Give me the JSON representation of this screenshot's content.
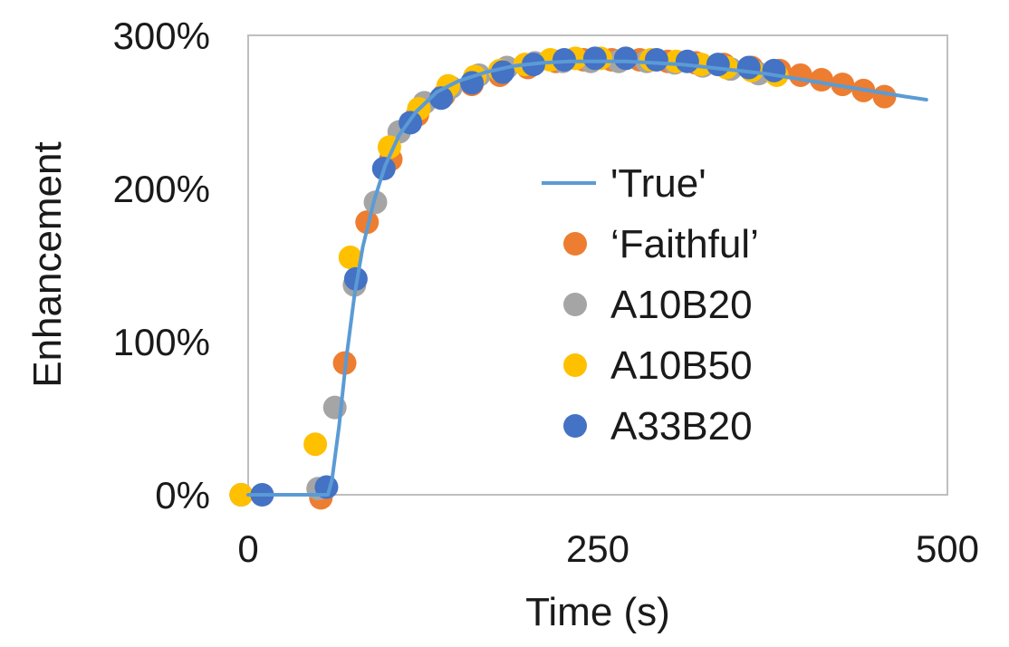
{
  "chart_data": {
    "type": "scatter",
    "xlabel": "Time (s)",
    "ylabel": "Enhancement",
    "xlim": [
      0,
      500
    ],
    "ylim": [
      0,
      300
    ],
    "x_ticks": [
      0,
      250,
      500
    ],
    "x_tick_labels": [
      "0",
      "250",
      "500"
    ],
    "y_ticks": [
      0,
      100,
      200,
      300
    ],
    "y_tick_labels": [
      "0%",
      "100%",
      "200%",
      "300%"
    ],
    "grid": false,
    "legend_position": "center-right",
    "series": [
      {
        "name": "'True'",
        "kind": "line",
        "color": "#5b9bd5",
        "x": [
          0,
          57,
          60,
          65,
          70,
          76,
          82,
          90,
          98,
          108,
          120,
          135,
          150,
          170,
          190,
          210,
          230,
          250,
          270,
          290,
          310,
          330,
          350,
          370,
          390,
          410,
          430,
          450,
          470,
          485
        ],
        "y": [
          0,
          0,
          10,
          45,
          88,
          130,
          162,
          192,
          215,
          235,
          250,
          263,
          270,
          276,
          280,
          282,
          283,
          283,
          283,
          282,
          281,
          279,
          277,
          275,
          272,
          269,
          266,
          263,
          260,
          258
        ]
      },
      {
        "name": "‘Faithful’",
        "kind": "marker",
        "color": "#ed7d31",
        "x": [
          -5,
          52,
          69,
          85,
          102,
          121,
          140,
          160,
          180,
          200,
          220,
          240,
          260,
          280,
          300,
          320,
          340,
          360,
          380,
          395,
          410,
          425,
          440,
          455
        ],
        "y": [
          0,
          -2,
          86,
          178,
          219,
          248,
          261,
          268,
          274,
          279,
          283,
          284,
          284,
          284,
          283,
          282,
          281,
          279,
          277,
          274,
          271,
          268,
          264,
          260
        ]
      },
      {
        "name": "A10B20",
        "kind": "marker",
        "color": "#a5a5a5",
        "x": [
          -5,
          50,
          62,
          76,
          91,
          108,
          126,
          145,
          165,
          185,
          205,
          225,
          245,
          265,
          285,
          305,
          325,
          345,
          365
        ],
        "y": [
          0,
          4,
          57,
          137,
          191,
          237,
          256,
          266,
          274,
          279,
          282,
          283,
          283,
          283,
          283,
          282,
          280,
          278,
          275
        ]
      },
      {
        "name": "A10B50",
        "kind": "marker",
        "color": "#ffc000",
        "x": [
          -5,
          48,
          73,
          101,
          122,
          143,
          162,
          180,
          198,
          216,
          234,
          252,
          270,
          288,
          306,
          324,
          342,
          360,
          378
        ],
        "y": [
          0,
          33,
          155,
          227,
          252,
          267,
          273,
          277,
          281,
          284,
          285,
          285,
          285,
          284,
          283,
          281,
          279,
          277,
          274
        ]
      },
      {
        "name": "A33B20",
        "kind": "marker",
        "color": "#4472c4",
        "x": [
          10,
          56,
          77,
          97,
          116,
          138,
          160,
          182,
          204,
          226,
          248,
          270,
          292,
          314,
          336,
          358,
          376
        ],
        "y": [
          0,
          5,
          141,
          213,
          243,
          259,
          269,
          276,
          281,
          284,
          285,
          285,
          284,
          283,
          281,
          279,
          277
        ]
      }
    ]
  }
}
